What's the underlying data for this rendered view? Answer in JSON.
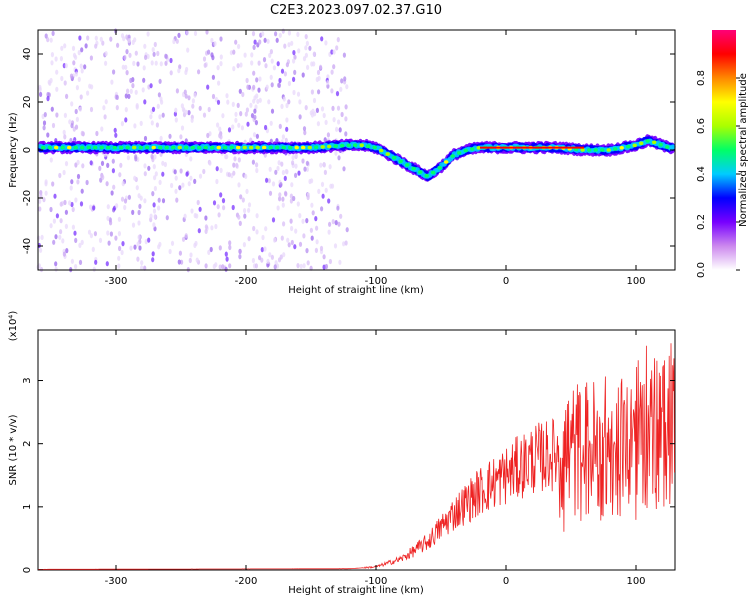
{
  "figure": {
    "title": "C2E3.2023.097.02.37.G10"
  },
  "chart_data": [
    {
      "type": "heatmap",
      "xlabel": "Height of straight line (km)",
      "ylabel": "Frequency (Hz)",
      "xlim": [
        -360,
        130
      ],
      "ylim": [
        -50,
        50
      ],
      "xticks": [
        -300,
        -200,
        -100,
        0,
        100
      ],
      "yticks": [
        -40,
        -20,
        0,
        20,
        40
      ],
      "colorbar": {
        "label": "Normalized spectral amplitude",
        "range": [
          0.0,
          1.0
        ],
        "ticks": [
          "0.0",
          "0.2",
          "0.4",
          "0.6",
          "0.8"
        ],
        "colors": [
          "#ffffff",
          "#cc88ee",
          "#7700ff",
          "#0000ff",
          "#00ccff",
          "#00ff66",
          "#aaff00",
          "#ffff00",
          "#ff8800",
          "#ff0000",
          "#ff0077"
        ]
      },
      "ridge": {
        "x": [
          -355,
          -300,
          -250,
          -200,
          -150,
          -120,
          -110,
          -100,
          -90,
          -80,
          -70,
          -60,
          -50,
          -40,
          -30,
          -20,
          -10,
          0,
          20,
          40,
          60,
          80,
          100,
          110,
          120,
          125
        ],
        "y": [
          1,
          1,
          1,
          1,
          1,
          2,
          2,
          1,
          -2,
          -5,
          -8,
          -11,
          -7,
          -2,
          0,
          1,
          1,
          1,
          1,
          1,
          0,
          0,
          2,
          4,
          2,
          1
        ]
      },
      "noise_region_x": [
        -360,
        -122
      ]
    },
    {
      "type": "line",
      "xlabel": "Height of straight line (km)",
      "ylabel": "SNR (10 * v/v)",
      "y_multiplier": "(x10⁴)",
      "xlim": [
        -360,
        130
      ],
      "ylim": [
        0,
        3.8
      ],
      "xticks": [
        -300,
        -200,
        -100,
        0,
        100
      ],
      "yticks": [
        0,
        1,
        2,
        3
      ],
      "color": "#ee2222",
      "envelope": {
        "x": [
          -360,
          -120,
          -100,
          -80,
          -60,
          -40,
          -20,
          0,
          20,
          40,
          60,
          80,
          100,
          120,
          130
        ],
        "y": [
          0.01,
          0.02,
          0.05,
          0.18,
          0.45,
          0.9,
          1.25,
          1.5,
          1.75,
          1.85,
          1.9,
          1.95,
          2.05,
          2.2,
          2.3
        ]
      }
    }
  ]
}
